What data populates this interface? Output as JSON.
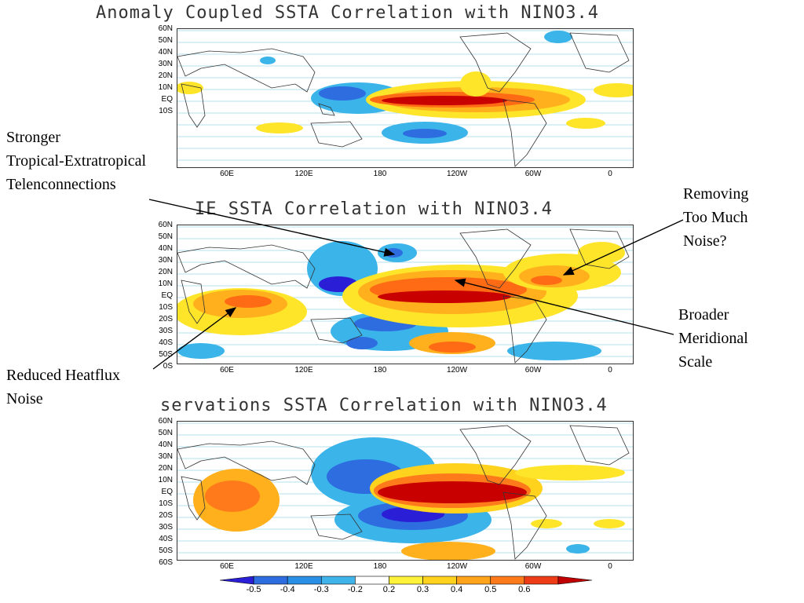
{
  "panels": [
    {
      "title": "Anomaly Coupled SSTA Correlation with NINO3.4",
      "lat_labels": [
        "60N",
        "50N",
        "40N",
        "30N",
        "20N",
        "10N",
        "EQ",
        "10S"
      ]
    },
    {
      "title": "IE SSTA Correlation with NINO3.4",
      "lat_labels": [
        "60N",
        "50N",
        "40N",
        "30N",
        "20N",
        "10N",
        "EQ",
        "10S",
        "20S",
        "30S",
        "40S",
        "50S",
        "0S"
      ]
    },
    {
      "title": "servations SSTA Correlation with NINO3.4",
      "lat_labels": [
        "60N",
        "50N",
        "40N",
        "30N",
        "20N",
        "10N",
        "EQ",
        "10S",
        "20S",
        "30S",
        "40S",
        "50S",
        "60S"
      ]
    }
  ],
  "lon_labels": [
    "60E",
    "120E",
    "180",
    "120W",
    "60W",
    "0"
  ],
  "annotations": {
    "stronger": "Stronger\nTropical-Extratropical\nTelenconnections",
    "removing": "Removing\nToo Much\nNoise?",
    "broader": "Broader\nMeridional\nScale",
    "reduced": "Reduced Heatflux\nNoise"
  },
  "colorbar": {
    "labels": [
      "-0.5",
      "-0.4",
      "-0.3",
      "-0.2",
      "0.2",
      "0.3",
      "0.4",
      "0.5",
      "0.6"
    ],
    "colors": [
      "#2a1fd6",
      "#2d6de0",
      "#2a90e6",
      "#3fb3ea",
      "#ffffff",
      "#fff23a",
      "#ffd21e",
      "#ffa31c",
      "#ff7a1a",
      "#ee3d16",
      "#c00000"
    ]
  },
  "colors": {
    "neg_strong": "#3a2fd0",
    "neg_mid": "#2f8fe6",
    "neg_weak": "#3bb4ea",
    "pos_weak": "#ffe52a",
    "pos_mid": "#ffb01c",
    "pos_strong": "#ff6a14",
    "pos_max": "#c80000"
  }
}
